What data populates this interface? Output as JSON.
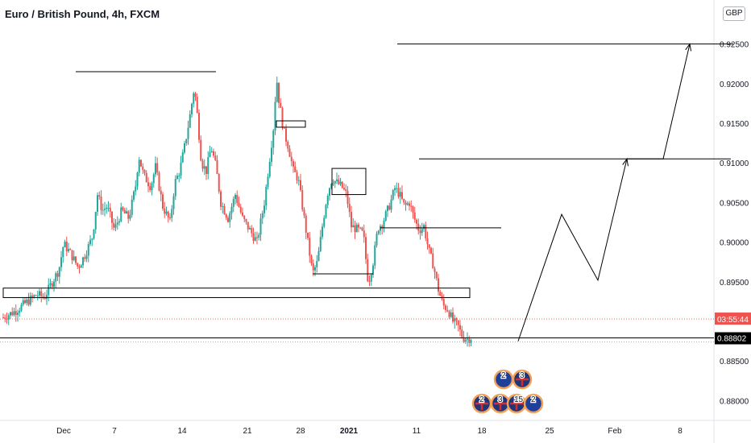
{
  "title": "Euro / British Pound, 4h, FXCM",
  "currency": "GBP",
  "colors": {
    "up": "#26a69a",
    "down": "#ef5350",
    "annotation": "#000000",
    "countdown_bg": "#ef5350",
    "price_bg": "#000000"
  },
  "chart_data": {
    "type": "candlestick",
    "title": "Euro / British Pound, 4h, FXCM",
    "ylim": [
      0.8775,
      0.9275
    ],
    "y_ticks": [
      "0.88000",
      "0.88500",
      "0.89000",
      "0.89500",
      "0.90000",
      "0.90500",
      "0.91000",
      "0.91500",
      "0.92000",
      "0.92500"
    ],
    "x_ticks": [
      "Dec",
      "7",
      "14",
      "21",
      "28",
      "2021",
      "11",
      "18",
      "25",
      "Feb",
      "8"
    ],
    "current_price": "0.88802",
    "countdown": "03:55:44",
    "price_path": [
      [
        0,
        0.8905
      ],
      [
        5,
        0.8913
      ],
      [
        10,
        0.8925
      ],
      [
        14,
        0.8934
      ],
      [
        17,
        0.893
      ],
      [
        20,
        0.8948
      ],
      [
        23,
        0.8965
      ],
      [
        25,
        0.8998
      ],
      [
        28,
        0.8985
      ],
      [
        31,
        0.8968
      ],
      [
        34,
        0.8985
      ],
      [
        37,
        0.9008
      ],
      [
        39,
        0.906
      ],
      [
        41,
        0.904
      ],
      [
        43,
        0.9045
      ],
      [
        46,
        0.9015
      ],
      [
        49,
        0.904
      ],
      [
        52,
        0.903
      ],
      [
        55,
        0.9075
      ],
      [
        56,
        0.911
      ],
      [
        58,
        0.9085
      ],
      [
        61,
        0.907
      ],
      [
        63,
        0.9095
      ],
      [
        66,
        0.9045
      ],
      [
        69,
        0.9025
      ],
      [
        71,
        0.9075
      ],
      [
        73,
        0.909
      ],
      [
        75,
        0.912
      ],
      [
        77,
        0.9155
      ],
      [
        79,
        0.9195
      ],
      [
        80,
        0.917
      ],
      [
        82,
        0.91
      ],
      [
        84,
        0.909
      ],
      [
        86,
        0.912
      ],
      [
        88,
        0.9095
      ],
      [
        90,
        0.905
      ],
      [
        93,
        0.903
      ],
      [
        96,
        0.906
      ],
      [
        99,
        0.903
      ],
      [
        102,
        0.9015
      ],
      [
        105,
        0.9
      ],
      [
        108,
        0.905
      ],
      [
        110,
        0.91
      ],
      [
        112,
        0.915
      ],
      [
        113,
        0.921
      ],
      [
        114,
        0.918
      ],
      [
        116,
        0.914
      ],
      [
        118,
        0.912
      ],
      [
        120,
        0.909
      ],
      [
        122,
        0.908
      ],
      [
        124,
        0.904
      ],
      [
        126,
        0.9
      ],
      [
        128,
        0.896
      ],
      [
        130,
        0.8975
      ],
      [
        132,
        0.902
      ],
      [
        134,
        0.906
      ],
      [
        136,
        0.908
      ],
      [
        138,
        0.9075
      ],
      [
        140,
        0.907
      ],
      [
        142,
        0.906
      ],
      [
        144,
        0.902
      ],
      [
        147,
        0.9015
      ],
      [
        149,
        0.901
      ],
      [
        151,
        0.8948
      ],
      [
        153,
        0.8975
      ],
      [
        155,
        0.9018
      ],
      [
        157,
        0.9025
      ],
      [
        160,
        0.9048
      ],
      [
        162,
        0.9068
      ],
      [
        164,
        0.906
      ],
      [
        166,
        0.9045
      ],
      [
        168,
        0.905
      ],
      [
        170,
        0.903
      ],
      [
        172,
        0.9015
      ],
      [
        174,
        0.902
      ],
      [
        176,
        0.899
      ],
      [
        178,
        0.897
      ],
      [
        180,
        0.894
      ],
      [
        182,
        0.892
      ],
      [
        184,
        0.8915
      ],
      [
        186,
        0.89
      ],
      [
        188,
        0.8895
      ],
      [
        190,
        0.888
      ],
      [
        192,
        0.8878
      ],
      [
        194,
        0.888
      ]
    ],
    "annotations": {
      "hlines": [
        {
          "x1": 30,
          "x2": 67,
          "y": 0.9215
        },
        {
          "x1": 67,
          "x2": 88,
          "y": 0.9215
        },
        {
          "x1": 128,
          "x2": 153,
          "y": 0.896
        },
        {
          "x1": 156,
          "x2": 206,
          "y": 0.9018
        },
        {
          "x1": 172,
          "x2": 301,
          "y": 0.9105
        },
        {
          "x1": 163,
          "x2": 302,
          "y": 0.925
        }
      ],
      "boxes": [
        {
          "x1": 0,
          "x2": 193,
          "y1": 0.8942,
          "y2": 0.893
        },
        {
          "x1": 113,
          "x2": 125,
          "y1": 0.9153,
          "y2": 0.9145
        },
        {
          "x1": 136,
          "x2": 150,
          "y1": 0.9093,
          "y2": 0.906
        }
      ],
      "projection": [
        [
          213,
          0.8875
        ],
        [
          231,
          0.9035
        ],
        [
          246,
          0.8952
        ],
        [
          258,
          0.9105
        ],
        [
          273,
          0.9105
        ],
        [
          284,
          0.925
        ]
      ]
    },
    "events": [
      {
        "label": "2",
        "flag": "eu"
      },
      {
        "label": "3",
        "flag": "uk"
      },
      {
        "label": "2",
        "flag": "uk"
      },
      {
        "label": "3",
        "flag": "uk"
      },
      {
        "label": "15",
        "flag": "uk"
      },
      {
        "label": "2",
        "flag": "eu"
      }
    ]
  }
}
